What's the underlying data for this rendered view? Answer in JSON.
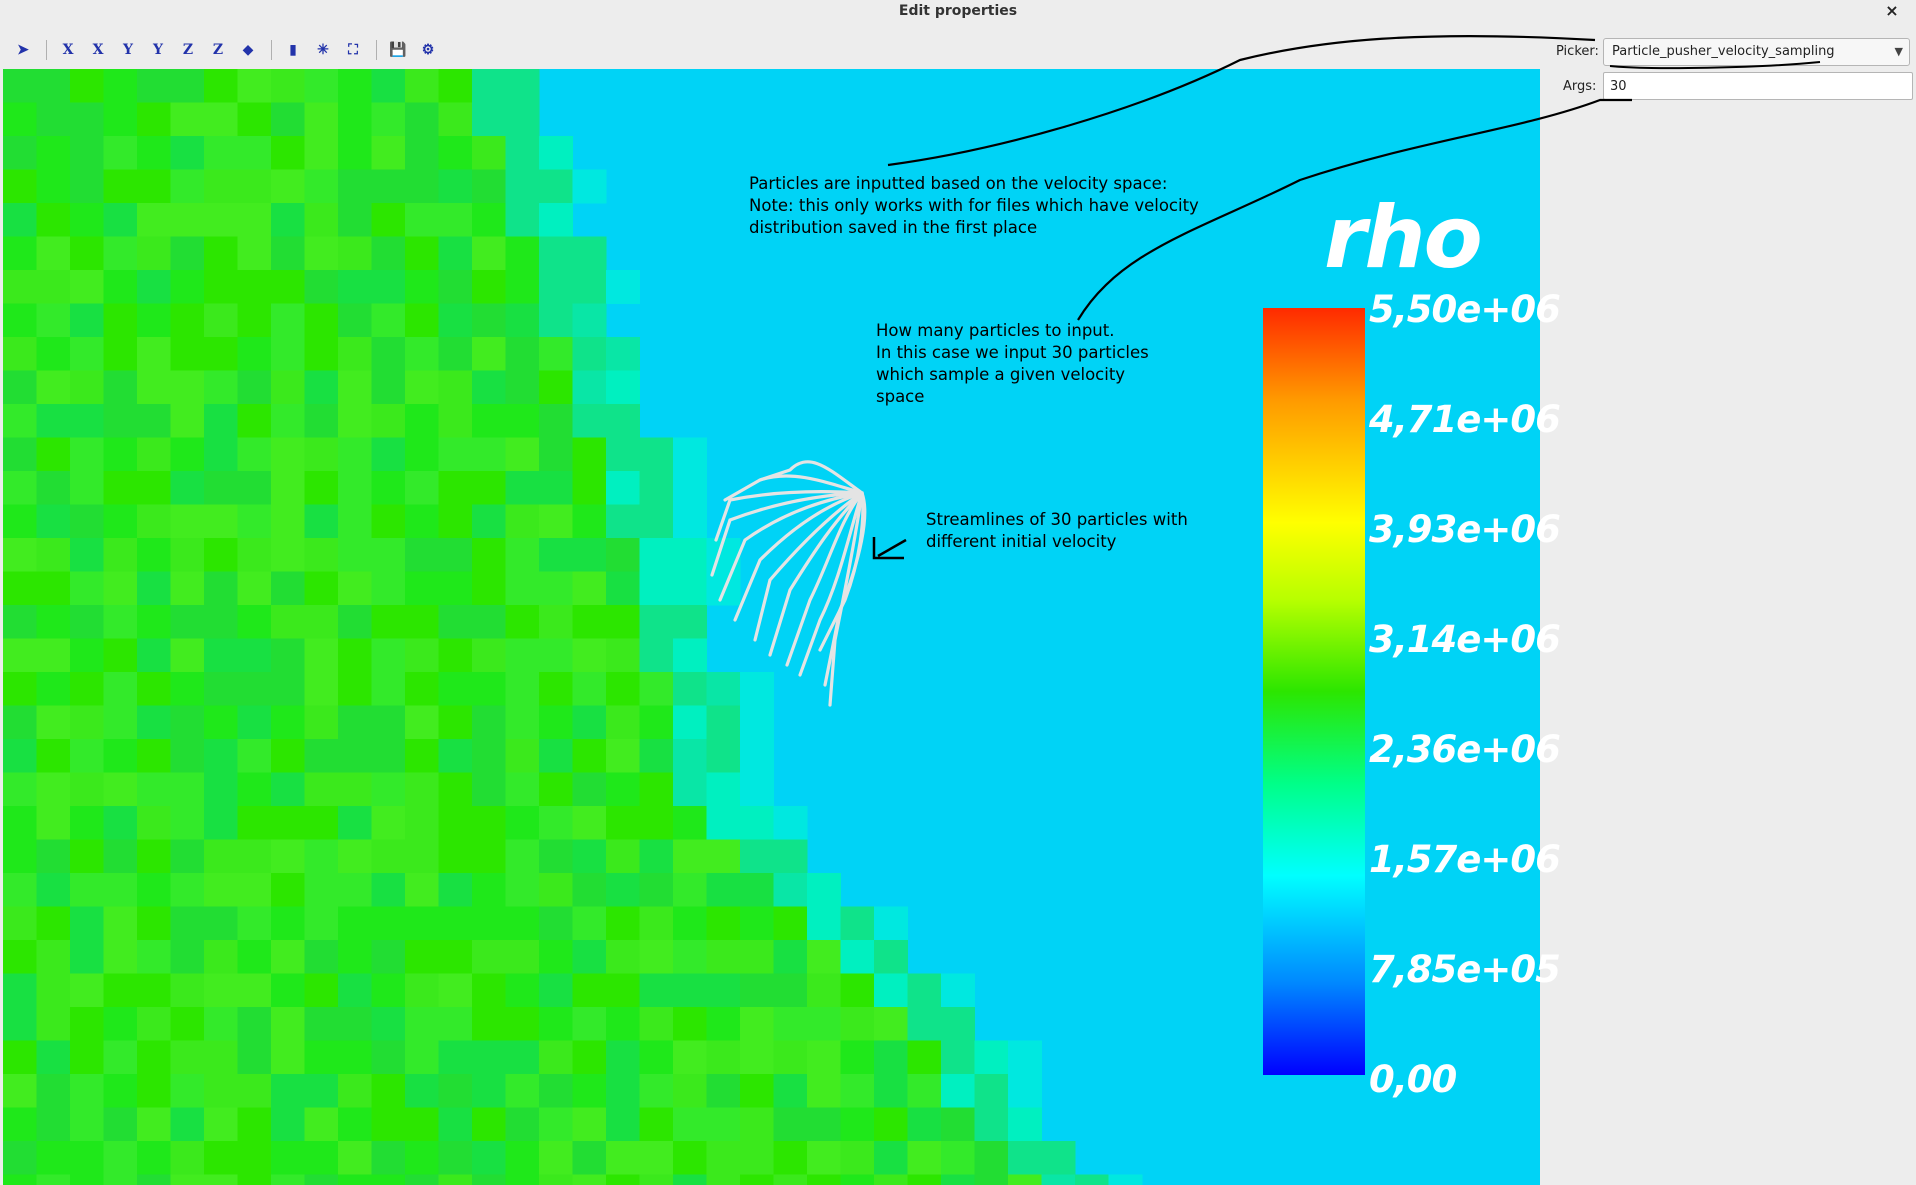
{
  "window": {
    "title": "Edit properties",
    "close": "×"
  },
  "toolbar": {
    "buttons": [
      {
        "name": "pointer-tool",
        "glyph": "➤"
      },
      {
        "name": "view-x-plus",
        "glyph": "X"
      },
      {
        "name": "view-x-minus",
        "glyph": "X"
      },
      {
        "name": "view-y-plus",
        "glyph": "Y"
      },
      {
        "name": "view-y-minus",
        "glyph": "Y"
      },
      {
        "name": "view-z-plus",
        "glyph": "Z"
      },
      {
        "name": "view-z-minus",
        "glyph": "Z"
      },
      {
        "name": "view-iso",
        "glyph": "◆"
      },
      {
        "name": "colorbar-toggle",
        "glyph": "▮"
      },
      {
        "name": "axes-toggle",
        "glyph": "✳"
      },
      {
        "name": "fit-view",
        "glyph": "⛶"
      },
      {
        "name": "save",
        "glyph": "💾"
      },
      {
        "name": "settings",
        "glyph": "⚙"
      }
    ]
  },
  "properties": {
    "picker_label": "Picker:",
    "picker_value": "Particle_pusher_velocity_sampling",
    "args_label": "Args:",
    "args_value": "30"
  },
  "annotations": {
    "picker_note": "Particles are inputted based on the velocity space:\nNote: this only works with for files which have velocity\ndistribution saved in the first place",
    "args_note": "How many particles to input.\nIn this case we input 30 particles\nwhich sample a given velocity\nspace",
    "streamline_note": "Streamlines of 30 particles with\ndifferent initial velocity"
  },
  "legend": {
    "variable": "rho",
    "ticks": [
      "5,50e+06",
      "4,71e+06",
      "3,93e+06",
      "3,14e+06",
      "2,36e+06",
      "1,57e+06",
      "7,85e+05",
      "0,00"
    ],
    "colors": {
      "background": "#00d3f6",
      "field": "#2ce600"
    }
  }
}
